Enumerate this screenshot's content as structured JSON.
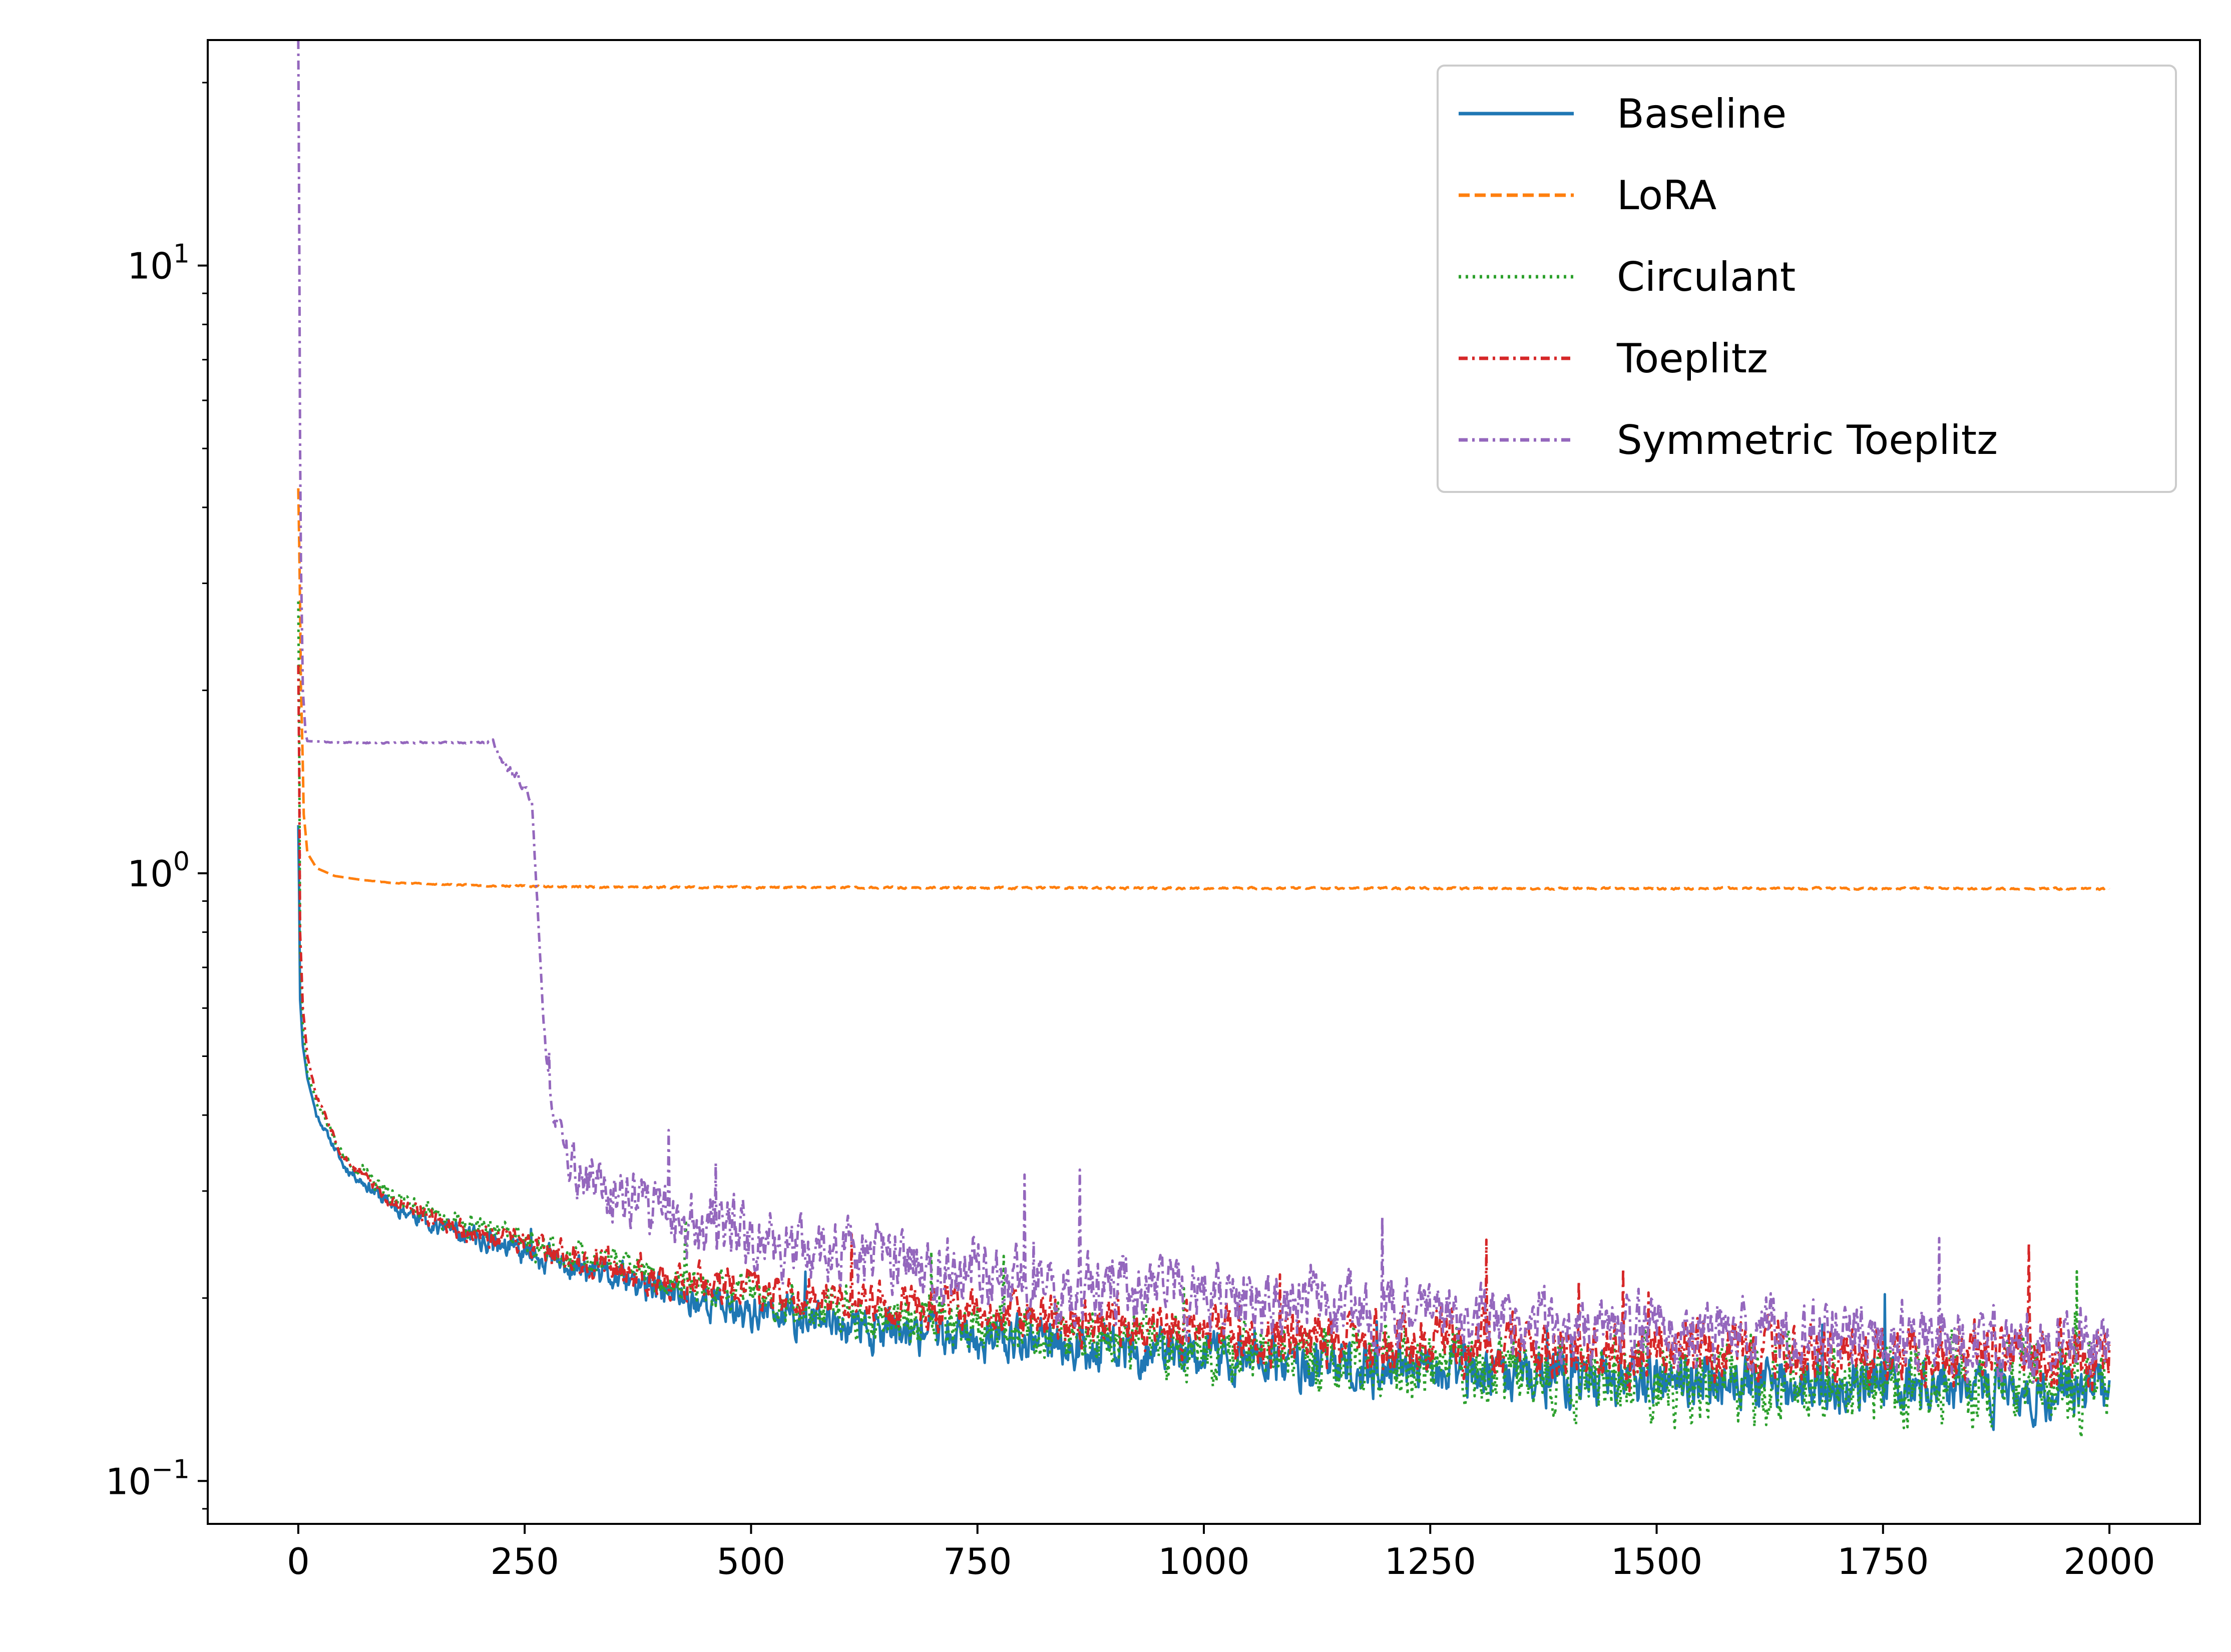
{
  "chart_data": {
    "type": "line",
    "title": "",
    "xlabel": "",
    "ylabel": "",
    "xscale": "linear",
    "yscale": "log",
    "xlim": [
      -100,
      2100
    ],
    "ylim": [
      0.085,
      23.5
    ],
    "xticks": [
      0,
      250,
      500,
      750,
      1000,
      1250,
      1500,
      1750,
      2000
    ],
    "xtick_labels": [
      "0",
      "250",
      "500",
      "750",
      "1000",
      "1250",
      "1500",
      "1750",
      "2000"
    ],
    "yticks": [
      0.1,
      1,
      10
    ],
    "ytick_labels": [
      {
        "base": "10",
        "exp": "−1"
      },
      {
        "base": "10",
        "exp": "0"
      },
      {
        "base": "10",
        "exp": "1"
      }
    ],
    "legend_position": "upper right",
    "series": [
      {
        "name": "Baseline",
        "color": "#1f77b4",
        "dash": "solid",
        "seed": 11,
        "x": [
          0,
          2,
          5,
          10,
          20,
          50,
          100,
          150,
          200,
          300,
          400,
          500,
          600,
          700,
          800,
          900,
          1000,
          1100,
          1200,
          1300,
          1400,
          1500,
          1600,
          1700,
          1800,
          1900,
          2000
        ],
        "y": [
          1.2,
          0.62,
          0.52,
          0.46,
          0.4,
          0.33,
          0.285,
          0.265,
          0.25,
          0.225,
          0.205,
          0.19,
          0.18,
          0.175,
          0.17,
          0.165,
          0.16,
          0.155,
          0.152,
          0.15,
          0.148,
          0.146,
          0.145,
          0.143,
          0.142,
          0.14,
          0.14
        ],
        "noise": [
          0,
          0,
          0,
          0,
          0.01,
          0.02,
          0.03,
          0.04,
          0.05,
          0.06,
          0.07,
          0.08,
          0.08,
          0.09,
          0.09,
          0.1,
          0.1,
          0.1,
          0.11,
          0.11,
          0.11,
          0.11,
          0.11,
          0.11,
          0.11,
          0.11,
          0.11
        ]
      },
      {
        "name": "LoRA",
        "color": "#ff7f0e",
        "dash": "dashed",
        "seed": 23,
        "x": [
          0,
          1,
          3,
          6,
          10,
          20,
          40,
          70,
          100,
          200,
          300,
          500,
          800,
          1000,
          1200,
          1400,
          1600,
          1800,
          2000
        ],
        "y": [
          4.3,
          3.5,
          2.0,
          1.25,
          1.08,
          1.02,
          0.99,
          0.975,
          0.965,
          0.955,
          0.95,
          0.948,
          0.946,
          0.945,
          0.945,
          0.944,
          0.944,
          0.944,
          0.943
        ],
        "noise": [
          0,
          0,
          0,
          0,
          0,
          0,
          0,
          0,
          0.002,
          0.003,
          0.004,
          0.004,
          0.004,
          0.004,
          0.004,
          0.004,
          0.004,
          0.004,
          0.004
        ]
      },
      {
        "name": "Circulant",
        "color": "#2ca02c",
        "dash": "dotted",
        "seed": 37,
        "x": [
          0,
          2,
          5,
          10,
          20,
          50,
          100,
          150,
          200,
          300,
          400,
          500,
          600,
          700,
          800,
          900,
          1000,
          1100,
          1200,
          1300,
          1400,
          1500,
          1600,
          1700,
          1800,
          1900,
          2000
        ],
        "y": [
          2.8,
          0.75,
          0.56,
          0.47,
          0.42,
          0.34,
          0.295,
          0.275,
          0.26,
          0.235,
          0.215,
          0.2,
          0.19,
          0.185,
          0.178,
          0.172,
          0.166,
          0.16,
          0.156,
          0.153,
          0.15,
          0.148,
          0.147,
          0.145,
          0.143,
          0.142,
          0.142
        ],
        "noise": [
          0,
          0,
          0,
          0,
          0.01,
          0.025,
          0.035,
          0.045,
          0.05,
          0.06,
          0.07,
          0.08,
          0.09,
          0.1,
          0.11,
          0.12,
          0.13,
          0.13,
          0.14,
          0.15,
          0.15,
          0.16,
          0.16,
          0.16,
          0.16,
          0.16,
          0.16
        ]
      },
      {
        "name": "Toeplitz",
        "color": "#d62728",
        "dash": "dashdot",
        "seed": 53,
        "x": [
          0,
          2,
          5,
          10,
          20,
          50,
          100,
          150,
          200,
          300,
          400,
          500,
          600,
          700,
          800,
          900,
          1000,
          1100,
          1200,
          1300,
          1400,
          1500,
          1600,
          1700,
          1800,
          1900,
          2000
        ],
        "y": [
          2.2,
          0.8,
          0.6,
          0.5,
          0.43,
          0.34,
          0.29,
          0.27,
          0.255,
          0.235,
          0.215,
          0.205,
          0.198,
          0.192,
          0.186,
          0.18,
          0.175,
          0.172,
          0.17,
          0.168,
          0.166,
          0.165,
          0.164,
          0.163,
          0.162,
          0.161,
          0.16
        ],
        "noise": [
          0,
          0,
          0,
          0,
          0.01,
          0.02,
          0.03,
          0.04,
          0.05,
          0.06,
          0.07,
          0.08,
          0.08,
          0.09,
          0.09,
          0.1,
          0.1,
          0.11,
          0.11,
          0.12,
          0.12,
          0.12,
          0.12,
          0.12,
          0.12,
          0.12,
          0.12
        ]
      },
      {
        "name": "Symmetric Toeplitz",
        "color": "#9467bd",
        "dash": "dashdot",
        "seed": 71,
        "x": [
          0,
          1,
          2,
          3,
          5,
          8,
          10,
          50,
          100,
          150,
          200,
          215,
          225,
          240,
          250,
          258,
          262,
          266,
          270,
          275,
          280,
          290,
          300,
          320,
          350,
          400,
          500,
          600,
          700,
          800,
          900,
          1000,
          1100,
          1200,
          1300,
          1400,
          1500,
          1600,
          1700,
          1800,
          1900,
          2000
        ],
        "y": [
          23.5,
          12,
          5,
          3.2,
          2.0,
          1.7,
          1.65,
          1.64,
          1.64,
          1.64,
          1.64,
          1.65,
          1.52,
          1.45,
          1.38,
          1.3,
          1.0,
          0.8,
          0.6,
          0.48,
          0.4,
          0.36,
          0.33,
          0.31,
          0.295,
          0.275,
          0.25,
          0.235,
          0.225,
          0.215,
          0.205,
          0.2,
          0.195,
          0.19,
          0.185,
          0.18,
          0.178,
          0.176,
          0.174,
          0.172,
          0.17,
          0.168
        ],
        "noise": [
          0,
          0,
          0,
          0,
          0,
          0,
          0,
          0.003,
          0.003,
          0.003,
          0.003,
          0.01,
          0.02,
          0.02,
          0.02,
          0.02,
          0.02,
          0.02,
          0.03,
          0.04,
          0.06,
          0.08,
          0.1,
          0.11,
          0.12,
          0.12,
          0.13,
          0.13,
          0.13,
          0.13,
          0.13,
          0.13,
          0.13,
          0.13,
          0.13,
          0.13,
          0.13,
          0.13,
          0.13,
          0.13,
          0.13,
          0.13
        ]
      }
    ]
  }
}
